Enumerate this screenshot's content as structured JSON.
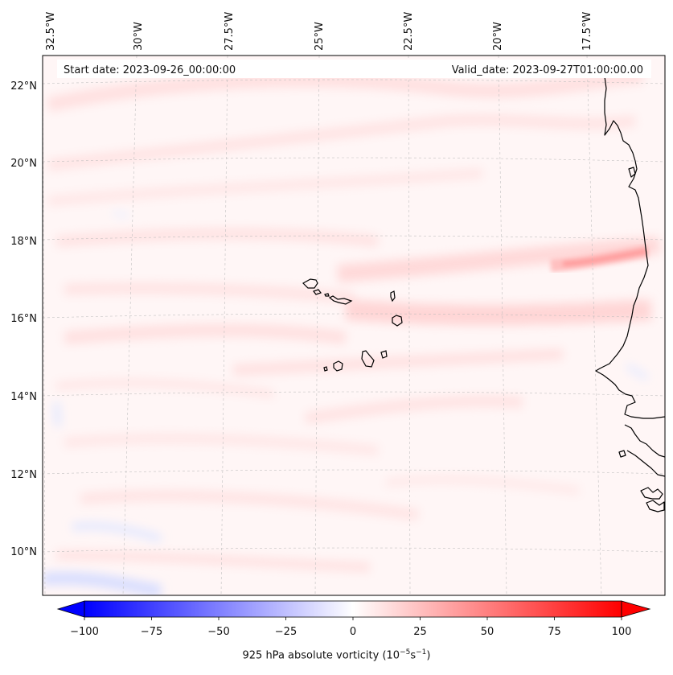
{
  "header": {
    "start_date": "Start date: 2023-09-26_00:00:00",
    "valid_date": "Valid_date: 2023-09-27T01:00:00.00"
  },
  "axes": {
    "lon_labels": [
      "32.5°W",
      "30°W",
      "27.5°W",
      "25°W",
      "22.5°W",
      "20°W",
      "17.5°W"
    ],
    "lat_labels": [
      "22°N",
      "20°N",
      "18°N",
      "16°N",
      "14°N",
      "12°N",
      "10°N"
    ]
  },
  "colorbar": {
    "ticks": [
      "−100",
      "−75",
      "−50",
      "−25",
      "0",
      "25",
      "50",
      "75",
      "100"
    ],
    "title_prefix": "925 hPa absolute vorticity (10",
    "title_exp1": "−5",
    "title_mid": "s",
    "title_exp2": "−1",
    "title_suffix": ")",
    "min_color": "#0000ff",
    "mid_color": "#ffffff",
    "max_color": "#ff0000",
    "levels": 40
  },
  "colors": {
    "background_field": "#fff6f6",
    "weak_positive": "#ffe2e2",
    "moderate_positive": "#ffcfcf",
    "strong_positive": "#ff9a9a",
    "weak_negative": "#e8ecff",
    "coastline": "#000000",
    "gridline": "#bbbbbb"
  }
}
